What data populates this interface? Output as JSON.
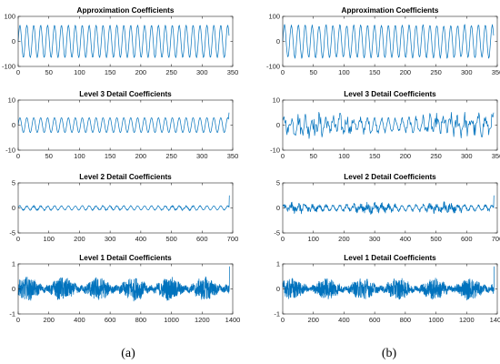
{
  "captions": [
    "(a)",
    "(b)"
  ],
  "chart_data": [
    {
      "type": "line",
      "panel": "a",
      "title": "Approximation Coefficients",
      "xlim": [
        0,
        350
      ],
      "ylim": [
        -100,
        100
      ],
      "xticks": [
        0,
        50,
        100,
        150,
        200,
        250,
        300,
        350
      ],
      "yticks": [
        -100,
        0,
        100
      ],
      "series": [
        {
          "n": 345,
          "amplitude": 65,
          "period": 11.3,
          "noise": 0,
          "end_spike": 0,
          "color": "#0072bd"
        }
      ]
    },
    {
      "type": "line",
      "panel": "b",
      "title": "Approximation Coefficients",
      "xlim": [
        0,
        350
      ],
      "ylim": [
        -100,
        100
      ],
      "xticks": [
        0,
        50,
        100,
        150,
        200,
        250,
        300,
        350
      ],
      "yticks": [
        -100,
        0,
        100
      ],
      "series": [
        {
          "n": 345,
          "amplitude": 65,
          "period": 11.3,
          "noise": 3,
          "end_spike": 0,
          "color": "#0072bd"
        }
      ]
    },
    {
      "type": "line",
      "panel": "a",
      "title": "Level 3 Detail Coefficients",
      "xlim": [
        0,
        350
      ],
      "ylim": [
        -10,
        10
      ],
      "xticks": [
        0,
        50,
        100,
        150,
        200,
        250,
        300,
        350
      ],
      "yticks": [
        -10,
        0,
        10
      ],
      "series": [
        {
          "n": 345,
          "amplitude": 3,
          "period": 11.3,
          "noise": 0,
          "end_spike": 5,
          "color": "#0072bd"
        }
      ]
    },
    {
      "type": "line",
      "panel": "b",
      "title": "Level 3 Detail Coefficients",
      "xlim": [
        0,
        350
      ],
      "ylim": [
        -10,
        10
      ],
      "xticks": [
        0,
        50,
        100,
        150,
        200,
        250,
        300,
        350
      ],
      "yticks": [
        -10,
        0,
        10
      ],
      "series": [
        {
          "n": 345,
          "amplitude": 2.5,
          "period": 11.3,
          "noise": 2,
          "end_spike": 5,
          "color": "#0072bd"
        }
      ]
    },
    {
      "type": "line",
      "panel": "a",
      "title": "Level 2 Detail Coefficients",
      "xlim": [
        0,
        700
      ],
      "ylim": [
        -5,
        5
      ],
      "xticks": [
        0,
        100,
        200,
        300,
        400,
        500,
        600,
        700
      ],
      "yticks": [
        -5,
        0,
        5
      ],
      "series": [
        {
          "n": 690,
          "amplitude": 0.4,
          "period": 22.6,
          "noise": 0.12,
          "end_spike": 2.5,
          "color": "#0072bd"
        }
      ]
    },
    {
      "type": "line",
      "panel": "b",
      "title": "Level 2 Detail Coefficients",
      "xlim": [
        0,
        700
      ],
      "ylim": [
        -5,
        5
      ],
      "xticks": [
        0,
        100,
        200,
        300,
        400,
        500,
        600,
        700
      ],
      "yticks": [
        -5,
        0,
        5
      ],
      "series": [
        {
          "n": 690,
          "amplitude": 0.5,
          "period": 22.6,
          "noise": 0.5,
          "end_spike": 2.5,
          "color": "#0072bd"
        }
      ]
    },
    {
      "type": "line",
      "panel": "a",
      "title": "Level 1 Detail Coefficients",
      "xlim": [
        0,
        1400
      ],
      "ylim": [
        -1,
        1
      ],
      "xticks": [
        0,
        200,
        400,
        600,
        800,
        1000,
        1200,
        1400
      ],
      "yticks": [
        -1,
        0,
        1
      ],
      "series": [
        {
          "n": 1380,
          "amplitude": 0.05,
          "period": 45,
          "noise": 0.28,
          "end_spike": 0.9,
          "color": "#0072bd"
        }
      ]
    },
    {
      "type": "line",
      "panel": "b",
      "title": "Level 1 Detail Coefficients",
      "xlim": [
        0,
        1400
      ],
      "ylim": [
        -1,
        1
      ],
      "xticks": [
        0,
        200,
        400,
        600,
        800,
        1000,
        1200,
        1400
      ],
      "yticks": [
        -1,
        0,
        1
      ],
      "series": [
        {
          "n": 1380,
          "amplitude": 0.05,
          "period": 45,
          "noise": 0.26,
          "end_spike": 0.9,
          "color": "#0072bd"
        }
      ]
    }
  ]
}
